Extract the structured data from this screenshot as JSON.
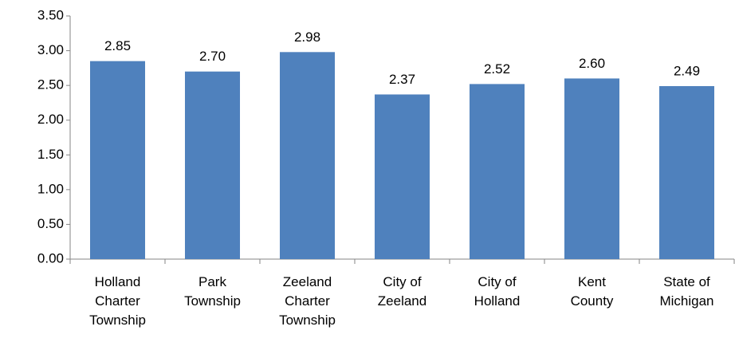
{
  "chart_data": {
    "type": "bar",
    "categories": [
      "Holland\nCharter\nTownship",
      "Park\nTownship",
      "Zeeland\nCharter\nTownship",
      "City of\nZeeland",
      "City of\nHolland",
      "Kent\nCounty",
      "State of\nMichigan"
    ],
    "values": [
      2.85,
      2.7,
      2.98,
      2.37,
      2.52,
      2.6,
      2.49
    ],
    "value_labels": [
      "2.85",
      "2.70",
      "2.98",
      "2.37",
      "2.52",
      "2.60",
      "2.49"
    ],
    "color": "#4f81bd",
    "ylim": [
      0,
      3.5
    ],
    "yticks": [
      {
        "value": 0,
        "label": "0.00"
      },
      {
        "value": 0.5,
        "label": "0.50"
      },
      {
        "value": 1,
        "label": "1.00"
      },
      {
        "value": 1.5,
        "label": "1.50"
      },
      {
        "value": 2,
        "label": "2.00"
      },
      {
        "value": 2.5,
        "label": "2.50"
      },
      {
        "value": 3,
        "label": "3.00"
      },
      {
        "value": 3.5,
        "label": "3.50"
      }
    ],
    "grid": false
  }
}
